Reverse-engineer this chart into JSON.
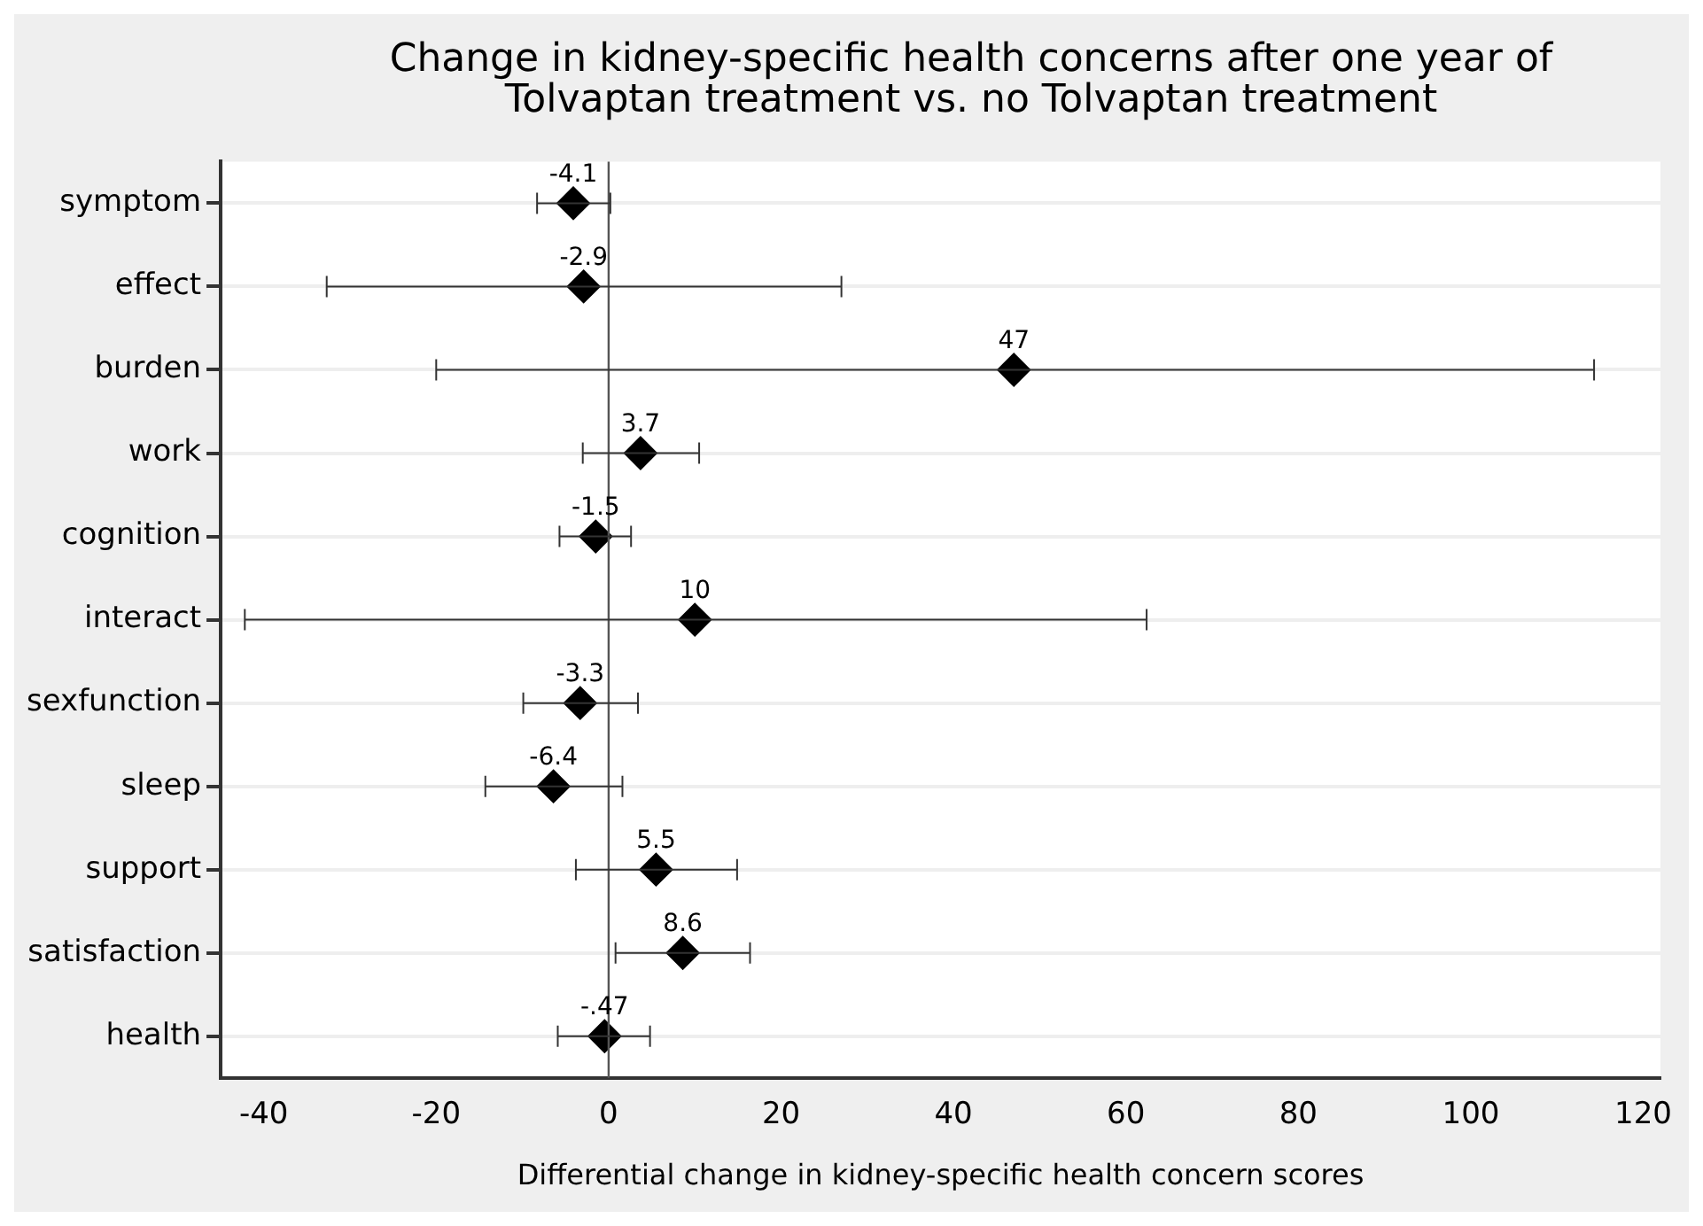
{
  "chart_data": {
    "type": "scatter",
    "orientation": "horizontal",
    "title": "Change in kidney-specific health concerns after one year of Tolvaptan treatment vs. no Tolvaptan treatment",
    "xlabel": "Differential change in kidney-specific health concern scores",
    "categories": [
      "symptom",
      "effect",
      "burden",
      "work",
      "cognition",
      "interact",
      "sexfunction",
      "sleep",
      "support",
      "satisfaction",
      "health"
    ],
    "values": [
      -4.1,
      -2.9,
      47,
      3.7,
      -1.5,
      10,
      -3.3,
      -6.4,
      5.5,
      8.6,
      -0.47
    ],
    "value_labels": [
      "-4.1",
      "-2.9",
      "47",
      "3.7",
      "-1.5",
      "10",
      "-3.3",
      "-6.4",
      "5.5",
      "8.6",
      "-.47"
    ],
    "errors": [
      [
        -8.3,
        0.2
      ],
      [
        -32.7,
        27.0
      ],
      [
        -20.0,
        114.3
      ],
      [
        -3.0,
        10.5
      ],
      [
        -5.7,
        2.6
      ],
      [
        -42.2,
        62.4
      ],
      [
        -9.9,
        3.4
      ],
      [
        -14.3,
        1.6
      ],
      [
        -3.8,
        14.9
      ],
      [
        0.8,
        16.4
      ],
      [
        -5.9,
        4.8
      ]
    ],
    "color": "#000000",
    "marker": "diamond",
    "xlim": [
      -45,
      122
    ],
    "xticks": [
      -40,
      -20,
      0,
      20,
      40,
      60,
      80,
      100,
      120
    ],
    "grid": "y",
    "legend": false,
    "ref_lines": [
      {
        "axis": "x",
        "value": 0,
        "color": "#555555"
      }
    ]
  }
}
